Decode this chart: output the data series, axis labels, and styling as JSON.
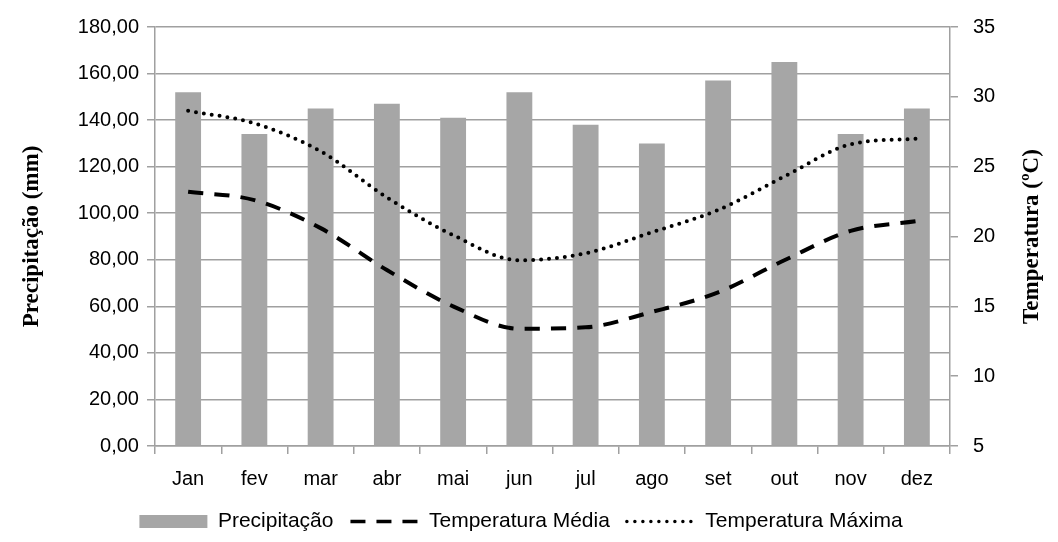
{
  "chart_data": {
    "type": "bar",
    "ylabel": "Precipitação (mm)",
    "y2label": "Temperatura (ºC)",
    "categories": [
      "Jan",
      "fev",
      "mar",
      "abr",
      "mai",
      "jun",
      "jul",
      "ago",
      "set",
      "out",
      "nov",
      "dez"
    ],
    "series": [
      {
        "name": "Precipitação",
        "type": "bar",
        "color": "#a6a6a6",
        "values": [
          152,
          134,
          145,
          147,
          141,
          152,
          138,
          130,
          157,
          165,
          134,
          145
        ]
      },
      {
        "name": "Temperatura Média",
        "type": "line",
        "line_style": "dashed",
        "color": "#000000",
        "axis": "y2",
        "values": [
          23.2,
          22.6,
          20.6,
          17.6,
          15,
          13.4,
          13.5,
          14.6,
          16,
          18.3,
          20.4,
          21.1
        ]
      },
      {
        "name": "Temperatura Máxima",
        "type": "line",
        "line_style": "dotted",
        "color": "#000000",
        "axis": "y2",
        "values": [
          29,
          28.1,
          26.1,
          22.8,
          20.1,
          18.3,
          18.8,
          20.3,
          21.9,
          24.3,
          26.6,
          27
        ]
      }
    ],
    "ylim": [
      0,
      180
    ],
    "yticks": [
      {
        "value": 0,
        "label": "0,00"
      },
      {
        "value": 20,
        "label": "20,00"
      },
      {
        "value": 40,
        "label": "40,00"
      },
      {
        "value": 60,
        "label": "60,00"
      },
      {
        "value": 80,
        "label": "80,00"
      },
      {
        "value": 100,
        "label": "100,00"
      },
      {
        "value": 120,
        "label": "120,00"
      },
      {
        "value": 140,
        "label": "140,00"
      },
      {
        "value": 160,
        "label": "160,00"
      },
      {
        "value": 180,
        "label": "180,00"
      }
    ],
    "y2lim": [
      5,
      35
    ],
    "y2ticks": [
      5,
      10,
      15,
      20,
      25,
      30,
      35
    ],
    "grid": "y",
    "legend": "bottom"
  }
}
